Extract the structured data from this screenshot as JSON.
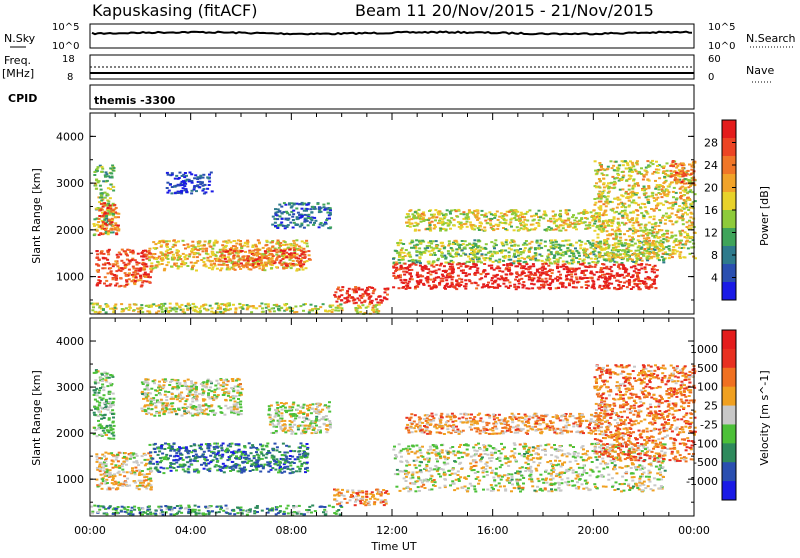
{
  "header": {
    "station": "Kapuskasing (fitACF)",
    "beam_info": "Beam 11  20/Nov/2015 - 21/Nov/2015"
  },
  "noise_panel": {
    "left_label": "N.Sky",
    "right_label": "N.Search",
    "left_top_tick": "10^5",
    "left_bottom_tick": "10^0",
    "right_top_tick": "10^5",
    "right_bottom_tick": "10^0"
  },
  "freq_panel": {
    "left_label_line1": "Freq.",
    "left_label_line2": "[MHz]",
    "right_label": "Nave",
    "left_top_tick": "18",
    "left_bottom_tick": "8",
    "right_top_tick": "60",
    "right_bottom_tick": "0"
  },
  "cpid_panel": {
    "label": "CPID",
    "value": "themis -3300"
  },
  "chart_data": [
    {
      "type": "heatmap",
      "title": "",
      "xlabel": "",
      "ylabel": "Slant Range [km]",
      "x_range_hours": [
        0,
        24
      ],
      "ylim": [
        200,
        4500
      ],
      "y_ticks": [
        "1000",
        "2000",
        "3000",
        "4000"
      ],
      "colorbar": {
        "label": "Power [dB]",
        "ticks": [
          "4",
          "8",
          "12",
          "16",
          "20",
          "24",
          "28"
        ],
        "range": [
          0,
          32
        ],
        "colors": [
          "#1a1ae6",
          "#2a4fb0",
          "#2e7a8c",
          "#3fa45a",
          "#8ecb3a",
          "#e8d22a",
          "#f1a32a",
          "#f07628",
          "#ec4424",
          "#e41c1c"
        ]
      },
      "regions": [
        {
          "t0": 0.1,
          "t1": 0.9,
          "r0": 1900,
          "r1": 3400,
          "level": 0.45
        },
        {
          "t0": 0.2,
          "t1": 2.4,
          "r0": 800,
          "r1": 1600,
          "level": 0.85
        },
        {
          "t0": 0.3,
          "t1": 1.1,
          "r0": 1900,
          "r1": 2600,
          "level": 0.8
        },
        {
          "t0": 2.3,
          "t1": 8.6,
          "r0": 1150,
          "r1": 1800,
          "level": 0.6
        },
        {
          "t0": 5.0,
          "t1": 8.7,
          "r0": 1250,
          "r1": 1600,
          "level": 0.8
        },
        {
          "t0": 3.0,
          "t1": 4.8,
          "r0": 2800,
          "r1": 3250,
          "level": 0.1
        },
        {
          "t0": 7.2,
          "t1": 9.5,
          "r0": 2050,
          "r1": 2600,
          "level": 0.2
        },
        {
          "t0": 0.0,
          "t1": 10.0,
          "r0": 250,
          "r1": 450,
          "level": 0.5
        },
        {
          "t0": 9.6,
          "t1": 11.8,
          "r0": 450,
          "r1": 800,
          "level": 0.92
        },
        {
          "t0": 10.5,
          "t1": 11.5,
          "r0": 200,
          "r1": 450,
          "level": 0.6
        },
        {
          "t0": 12.0,
          "t1": 22.8,
          "r0": 1300,
          "r1": 1800,
          "level": 0.45
        },
        {
          "t0": 12.0,
          "t1": 22.5,
          "r0": 750,
          "r1": 1300,
          "level": 0.95
        },
        {
          "t0": 12.5,
          "t1": 20.5,
          "r0": 2000,
          "r1": 2450,
          "level": 0.55
        },
        {
          "t0": 20.0,
          "t1": 24.0,
          "r0": 1400,
          "r1": 3500,
          "level": 0.55
        },
        {
          "t0": 23.0,
          "t1": 24.0,
          "r0": 3000,
          "r1": 3500,
          "level": 0.75
        }
      ]
    },
    {
      "type": "heatmap",
      "title": "",
      "xlabel": "Time UT",
      "ylabel": "Slant Range [km]",
      "x_range_hours": [
        0,
        24
      ],
      "x_ticks": [
        "00:00",
        "04:00",
        "08:00",
        "12:00",
        "16:00",
        "20:00",
        "00:00"
      ],
      "ylim": [
        200,
        4500
      ],
      "y_ticks": [
        "1000",
        "2000",
        "3000",
        "4000"
      ],
      "colorbar": {
        "label": "Velocity [m s^-1]",
        "ticks": [
          "1000",
          "500",
          "100",
          "25",
          "-25",
          "-100",
          "-500",
          "-1000"
        ],
        "colors": [
          "#1a1ae6",
          "#2a4fb0",
          "#2e8a5c",
          "#4cc038",
          "#c8c8c8",
          "#f0a020",
          "#f07020",
          "#e83020",
          "#e41c1c"
        ]
      },
      "regions": [
        {
          "t0": 0.1,
          "t1": 0.9,
          "r0": 1900,
          "r1": 3400,
          "level": 0.4
        },
        {
          "t0": 0.2,
          "t1": 2.4,
          "r0": 800,
          "r1": 1600,
          "level": 0.55
        },
        {
          "t0": 2.3,
          "t1": 8.6,
          "r0": 1150,
          "r1": 1800,
          "level": 0.25
        },
        {
          "t0": 2.0,
          "t1": 6.0,
          "r0": 2400,
          "r1": 3200,
          "level": 0.5
        },
        {
          "t0": 7.0,
          "t1": 9.5,
          "r0": 2000,
          "r1": 2700,
          "level": 0.5
        },
        {
          "t0": 0.0,
          "t1": 10.0,
          "r0": 250,
          "r1": 450,
          "level": 0.3
        },
        {
          "t0": 9.6,
          "t1": 11.8,
          "r0": 450,
          "r1": 800,
          "level": 0.65
        },
        {
          "t0": 12.0,
          "t1": 22.8,
          "r0": 750,
          "r1": 1800,
          "level": 0.5
        },
        {
          "t0": 12.5,
          "t1": 20.5,
          "r0": 2000,
          "r1": 2450,
          "level": 0.65
        },
        {
          "t0": 20.0,
          "t1": 24.0,
          "r0": 1400,
          "r1": 3500,
          "level": 0.7
        }
      ]
    }
  ]
}
